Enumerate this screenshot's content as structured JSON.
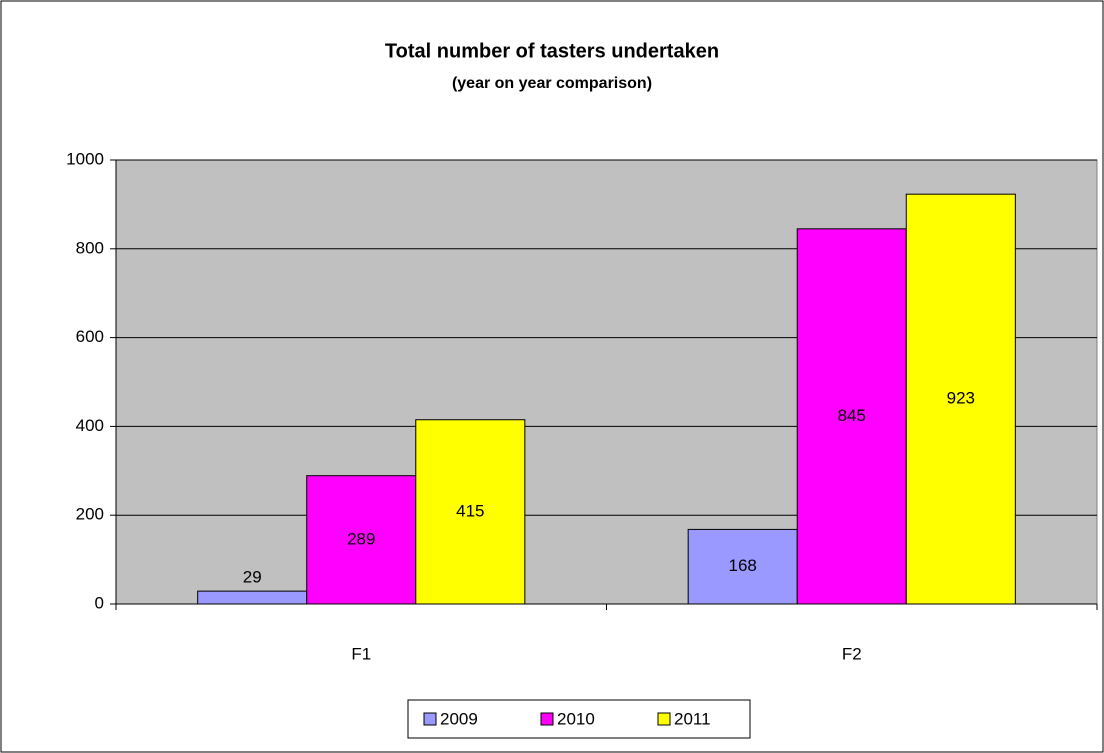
{
  "chart_data": {
    "type": "bar",
    "title": "Total number of tasters undertaken",
    "subtitle": "(year on year comparison)",
    "categories": [
      "F1",
      "F2"
    ],
    "series": [
      {
        "name": "2009",
        "color": "#9999ff",
        "values": [
          29,
          168
        ]
      },
      {
        "name": "2010",
        "color": "#ff00ff",
        "values": [
          289,
          845
        ]
      },
      {
        "name": "2011",
        "color": "#ffff00",
        "values": [
          415,
          923
        ]
      }
    ],
    "ylim": [
      0,
      1000
    ],
    "yticks": [
      0,
      200,
      400,
      600,
      800,
      1000
    ],
    "grid": true,
    "legend": "bottom"
  }
}
